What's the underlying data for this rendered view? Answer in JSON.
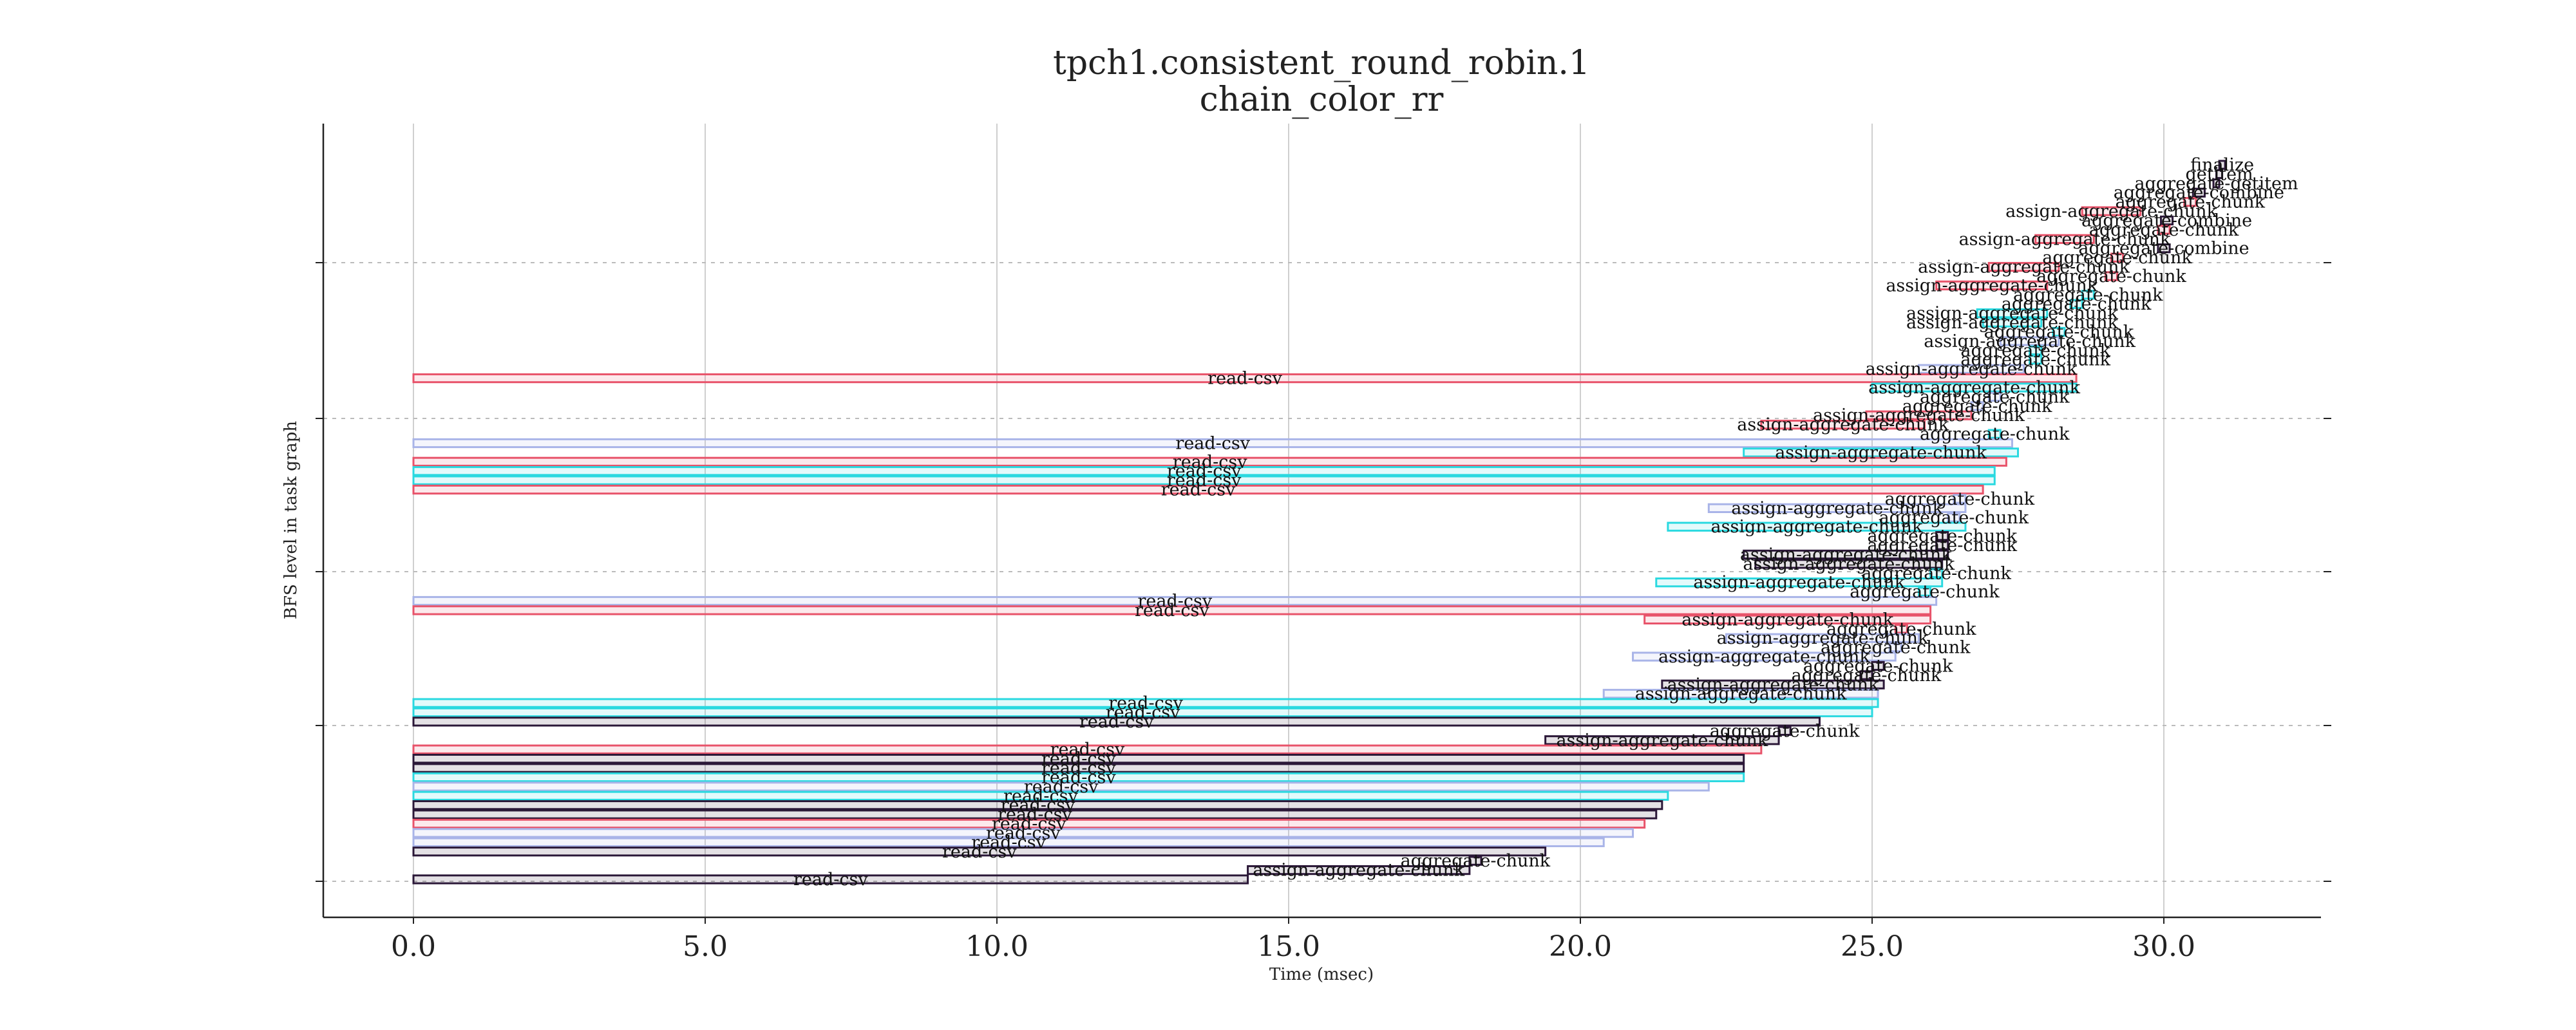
{
  "chart_data": {
    "type": "gantt",
    "title": "tpch1.consistent_round_robin.1",
    "subtitle": "chain_color_rr",
    "xlabel": "Time (msec)",
    "ylabel": "BFS level in task graph",
    "xlim": [
      -1.5,
      32.6
    ],
    "x_ticks": [
      "0.0",
      "5.0",
      "10.0",
      "15.0",
      "20.0",
      "25.0",
      "30.0"
    ],
    "grid": {
      "x": "solid",
      "y": "dotted"
    },
    "colors": {
      "red": "#e8536a",
      "lavender": "#a9b4e8",
      "cyan": "#2ad9e0",
      "navy": "#2b1838"
    },
    "tasks": [
      {
        "label": "finalize",
        "start": 30.95,
        "end": 31.05,
        "color": "navy"
      },
      {
        "label": "getitem",
        "start": 30.9,
        "end": 31.0,
        "color": "navy"
      },
      {
        "label": "aggregate-getitem",
        "start": 30.85,
        "end": 30.95,
        "color": "navy"
      },
      {
        "label": "aggregate-combine",
        "start": 30.5,
        "end": 30.7,
        "color": "navy"
      },
      {
        "label": "aggregate-chunk",
        "start": 30.35,
        "end": 30.55,
        "color": "red"
      },
      {
        "label": "assign-aggregate-chunk",
        "start": 28.6,
        "end": 29.6,
        "color": "red"
      },
      {
        "label": "aggregate-combine",
        "start": 29.95,
        "end": 30.15,
        "color": "navy"
      },
      {
        "label": "aggregate-chunk",
        "start": 29.9,
        "end": 30.1,
        "color": "red"
      },
      {
        "label": "assign-aggregate-chunk",
        "start": 27.8,
        "end": 28.8,
        "color": "red"
      },
      {
        "label": "aggregate-combine",
        "start": 29.9,
        "end": 30.1,
        "color": "navy"
      },
      {
        "label": "aggregate-chunk",
        "start": 29.1,
        "end": 29.3,
        "color": "red"
      },
      {
        "label": "assign-aggregate-chunk",
        "start": 27.0,
        "end": 28.2,
        "color": "red"
      },
      {
        "label": "aggregate-chunk",
        "start": 29.0,
        "end": 29.2,
        "color": "red"
      },
      {
        "label": "assign-aggregate-chunk",
        "start": 26.1,
        "end": 28.0,
        "color": "red"
      },
      {
        "label": "aggregate-chunk",
        "start": 28.6,
        "end": 28.8,
        "color": "cyan"
      },
      {
        "label": "aggregate-chunk",
        "start": 28.4,
        "end": 28.6,
        "color": "cyan"
      },
      {
        "label": "assign-aggregate-chunk",
        "start": 26.8,
        "end": 28.0,
        "color": "cyan"
      },
      {
        "label": "assign-aggregate-chunk",
        "start": 26.9,
        "end": 27.9,
        "color": "cyan"
      },
      {
        "label": "aggregate-chunk",
        "start": 28.1,
        "end": 28.3,
        "color": "cyan"
      },
      {
        "label": "assign-aggregate-chunk",
        "start": 27.2,
        "end": 28.2,
        "color": "lavender"
      },
      {
        "label": "aggregate-chunk",
        "start": 27.7,
        "end": 27.9,
        "color": "cyan"
      },
      {
        "label": "aggregate-chunk",
        "start": 27.7,
        "end": 27.9,
        "color": "cyan"
      },
      {
        "label": "assign-aggregate-chunk",
        "start": 25.8,
        "end": 27.6,
        "color": "lavender"
      },
      {
        "label": "read-csv",
        "start": 0.0,
        "end": 28.5,
        "color": "red"
      },
      {
        "label": "assign-aggregate-chunk",
        "start": 25.0,
        "end": 28.5,
        "color": "cyan"
      },
      {
        "label": "aggregate-chunk",
        "start": 27.0,
        "end": 27.2,
        "color": "lavender"
      },
      {
        "label": "aggregate-chunk",
        "start": 26.7,
        "end": 26.9,
        "color": "lavender"
      },
      {
        "label": "assign-aggregate-chunk",
        "start": 24.9,
        "end": 26.7,
        "color": "red"
      },
      {
        "label": "assign-aggregate-chunk",
        "start": 23.1,
        "end": 25.9,
        "color": "red"
      },
      {
        "label": "aggregate-chunk",
        "start": 27.0,
        "end": 27.2,
        "color": "cyan"
      },
      {
        "label": "read-csv",
        "start": 0.0,
        "end": 27.4,
        "color": "lavender"
      },
      {
        "label": "assign-aggregate-chunk",
        "start": 22.8,
        "end": 27.5,
        "color": "cyan"
      },
      {
        "label": "read-csv",
        "start": 0.0,
        "end": 27.3,
        "color": "red"
      },
      {
        "label": "read-csv",
        "start": 0.0,
        "end": 27.1,
        "color": "cyan"
      },
      {
        "label": "read-csv",
        "start": 0.0,
        "end": 27.1,
        "color": "cyan"
      },
      {
        "label": "read-csv",
        "start": 0.0,
        "end": 26.9,
        "color": "red"
      },
      {
        "label": "aggregate-chunk",
        "start": 26.4,
        "end": 26.6,
        "color": "lavender"
      },
      {
        "label": "assign-aggregate-chunk",
        "start": 22.2,
        "end": 26.6,
        "color": "lavender"
      },
      {
        "label": "aggregate-chunk",
        "start": 26.3,
        "end": 26.5,
        "color": "lavender"
      },
      {
        "label": "assign-aggregate-chunk",
        "start": 21.5,
        "end": 26.6,
        "color": "cyan"
      },
      {
        "label": "aggregate-chunk",
        "start": 26.1,
        "end": 26.3,
        "color": "navy"
      },
      {
        "label": "aggregate-chunk",
        "start": 26.1,
        "end": 26.3,
        "color": "navy"
      },
      {
        "label": "assign-aggregate-chunk",
        "start": 22.8,
        "end": 26.3,
        "color": "navy"
      },
      {
        "label": "assign-aggregate-chunk",
        "start": 23.0,
        "end": 26.2,
        "color": "navy"
      },
      {
        "label": "aggregate-chunk",
        "start": 26.0,
        "end": 26.2,
        "color": "cyan"
      },
      {
        "label": "assign-aggregate-chunk",
        "start": 21.3,
        "end": 26.2,
        "color": "cyan"
      },
      {
        "label": "aggregate-chunk",
        "start": 25.8,
        "end": 26.0,
        "color": "cyan"
      },
      {
        "label": "read-csv",
        "start": 0.0,
        "end": 26.1,
        "color": "lavender"
      },
      {
        "label": "read-csv",
        "start": 0.0,
        "end": 26.0,
        "color": "red"
      },
      {
        "label": "assign-aggregate-chunk",
        "start": 21.1,
        "end": 26.0,
        "color": "red"
      },
      {
        "label": "aggregate-chunk",
        "start": 25.4,
        "end": 25.6,
        "color": "red"
      },
      {
        "label": "assign-aggregate-chunk",
        "start": 22.5,
        "end": 25.8,
        "color": "lavender"
      },
      {
        "label": "aggregate-chunk",
        "start": 25.3,
        "end": 25.5,
        "color": "lavender"
      },
      {
        "label": "assign-aggregate-chunk",
        "start": 20.9,
        "end": 25.4,
        "color": "lavender"
      },
      {
        "label": "aggregate-chunk",
        "start": 25.0,
        "end": 25.2,
        "color": "navy"
      },
      {
        "label": "aggregate-chunk",
        "start": 24.8,
        "end": 25.0,
        "color": "navy"
      },
      {
        "label": "assign-aggregate-chunk",
        "start": 21.4,
        "end": 25.2,
        "color": "navy"
      },
      {
        "label": "assign-aggregate-chunk",
        "start": 20.4,
        "end": 25.1,
        "color": "lavender"
      },
      {
        "label": "read-csv",
        "start": 0.0,
        "end": 25.1,
        "color": "cyan"
      },
      {
        "label": "read-csv",
        "start": 0.0,
        "end": 25.0,
        "color": "cyan"
      },
      {
        "label": "read-csv",
        "start": 0.0,
        "end": 24.1,
        "color": "navy"
      },
      {
        "label": "aggregate-chunk",
        "start": 23.4,
        "end": 23.6,
        "color": "navy"
      },
      {
        "label": "assign-aggregate-chunk",
        "start": 19.4,
        "end": 23.4,
        "color": "navy"
      },
      {
        "label": "read-csv",
        "start": 0.0,
        "end": 23.1,
        "color": "red"
      },
      {
        "label": "read-csv",
        "start": 0.0,
        "end": 22.8,
        "color": "navy"
      },
      {
        "label": "read-csv",
        "start": 0.0,
        "end": 22.8,
        "color": "navy"
      },
      {
        "label": "read-csv",
        "start": 0.0,
        "end": 22.8,
        "color": "cyan"
      },
      {
        "label": "read-csv",
        "start": 0.0,
        "end": 22.2,
        "color": "lavender"
      },
      {
        "label": "read-csv",
        "start": 0.0,
        "end": 21.5,
        "color": "cyan"
      },
      {
        "label": "read-csv",
        "start": 0.0,
        "end": 21.4,
        "color": "navy"
      },
      {
        "label": "read-csv",
        "start": 0.0,
        "end": 21.3,
        "color": "navy"
      },
      {
        "label": "read-csv",
        "start": 0.0,
        "end": 21.1,
        "color": "red"
      },
      {
        "label": "read-csv",
        "start": 0.0,
        "end": 20.9,
        "color": "lavender"
      },
      {
        "label": "read-csv",
        "start": 0.0,
        "end": 20.4,
        "color": "lavender"
      },
      {
        "label": "read-csv",
        "start": 0.0,
        "end": 19.4,
        "color": "navy"
      },
      {
        "label": "aggregate-chunk",
        "start": 18.1,
        "end": 18.3,
        "color": "navy"
      },
      {
        "label": "assign-aggregate-chunk",
        "start": 14.3,
        "end": 18.1,
        "color": "navy"
      },
      {
        "label": "read-csv",
        "start": 0.0,
        "end": 14.3,
        "color": "navy"
      }
    ]
  }
}
